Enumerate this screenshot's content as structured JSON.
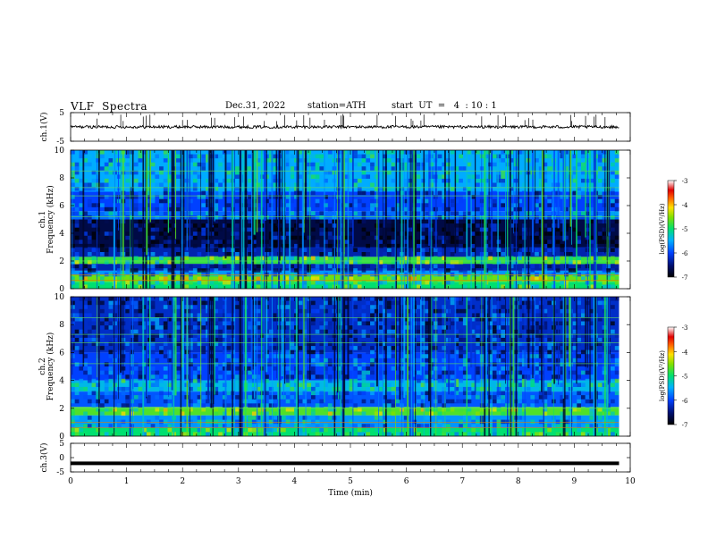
{
  "header": {
    "title": "VLF  Spectra",
    "date": "Dec.31, 2022",
    "station": "station=ATH",
    "start_ut": "start  UT  =   4  : 10 : 1"
  },
  "chart_data": [
    {
      "type": "line",
      "panel": "ch1-waveform",
      "ylabel": "ch.1(V)",
      "ylim": [
        -5,
        5
      ],
      "yticks": [
        "5",
        "-5"
      ],
      "xlim": [
        0,
        10
      ],
      "series": [
        {
          "mean": 0,
          "approx_amplitude": 1,
          "x_range_min": [
            0.0,
            9.8
          ]
        }
      ],
      "color": "#000000"
    },
    {
      "type": "heatmap",
      "panel": "ch1-spectrogram",
      "ylabel": "ch.1\nFrequency (kHz)",
      "ylim": [
        0,
        10
      ],
      "yticks": [
        "0",
        "2",
        "4",
        "6",
        "8",
        "10"
      ],
      "xlim": [
        0,
        9.8
      ],
      "colorbar": {
        "label": "log(PSD)(V²/Hz)",
        "ticks": [
          "-3",
          "-4",
          "-5",
          "-6",
          "-7"
        ],
        "range": [
          -7,
          -3
        ]
      },
      "bands_kHz": [
        {
          "from": 0.0,
          "to": 0.5,
          "log_psd": -5.0
        },
        {
          "from": 0.5,
          "to": 1.0,
          "log_psd": -4.6
        },
        {
          "from": 1.0,
          "to": 1.3,
          "log_psd": -5.6
        },
        {
          "from": 1.3,
          "to": 1.8,
          "log_psd": -6.3
        },
        {
          "from": 1.8,
          "to": 2.3,
          "log_psd": -4.8
        },
        {
          "from": 2.3,
          "to": 3.0,
          "log_psd": -6.3
        },
        {
          "from": 3.0,
          "to": 5.0,
          "log_psd": -6.7
        },
        {
          "from": 5.0,
          "to": 5.6,
          "log_psd": -5.8
        },
        {
          "from": 5.6,
          "to": 7.0,
          "log_psd": -6.0
        },
        {
          "from": 7.0,
          "to": 10.0,
          "log_psd": -5.5
        }
      ]
    },
    {
      "type": "heatmap",
      "panel": "ch2-spectrogram",
      "ylabel": "ch.2\nFrequency (kHz)",
      "ylim": [
        0,
        10
      ],
      "yticks": [
        "0",
        "2",
        "4",
        "6",
        "8",
        "10"
      ],
      "xlim": [
        0,
        9.8
      ],
      "colorbar": {
        "label": "log(PSD)(V²/Hz)",
        "ticks": [
          "-3",
          "-4",
          "-5",
          "-6",
          "-7"
        ],
        "range": [
          -7,
          -3
        ]
      },
      "bands_kHz": [
        {
          "from": 0.0,
          "to": 0.6,
          "log_psd": -5.0
        },
        {
          "from": 0.6,
          "to": 1.5,
          "log_psd": -5.6
        },
        {
          "from": 1.5,
          "to": 2.1,
          "log_psd": -4.7
        },
        {
          "from": 2.1,
          "to": 3.2,
          "log_psd": -5.9
        },
        {
          "from": 3.2,
          "to": 4.0,
          "log_psd": -5.4
        },
        {
          "from": 4.0,
          "to": 6.0,
          "log_psd": -6.0
        },
        {
          "from": 6.0,
          "to": 10.0,
          "log_psd": -6.2
        }
      ]
    },
    {
      "type": "line",
      "panel": "ch3-waveform",
      "ylabel": "ch.3(V)",
      "ylim": [
        -5,
        5
      ],
      "yticks": [
        "5",
        "0",
        "-5"
      ],
      "xlim": [
        0,
        10
      ],
      "xlabel": "Time  (min)",
      "xticks": [
        "0",
        "1",
        "2",
        "3",
        "4",
        "5",
        "6",
        "7",
        "8",
        "9",
        "10"
      ],
      "series": [
        {
          "constant": -2,
          "x_range_min": [
            0.0,
            9.8
          ]
        }
      ],
      "color": "#000000"
    }
  ]
}
